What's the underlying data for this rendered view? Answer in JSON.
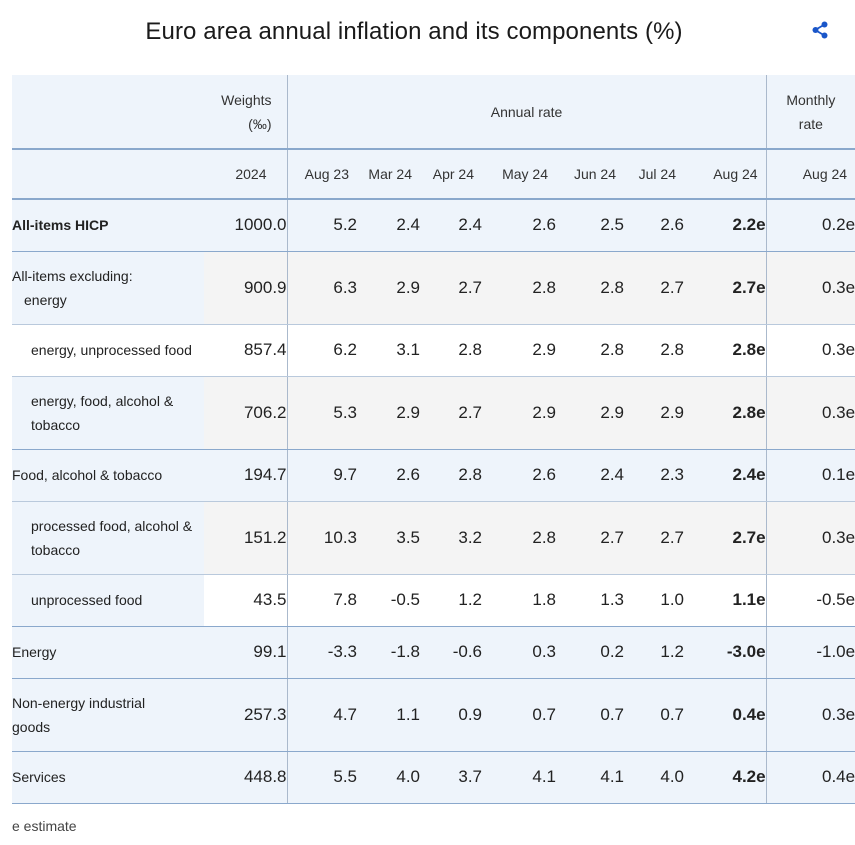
{
  "title": "Euro area annual inflation and its components (%)",
  "share_icon": "share-icon",
  "colors": {
    "header_bg": "#eef4fb",
    "row_alt_bg": "#f4f4f4",
    "border": "#8aa8cc",
    "share_icon": "#1a56c9"
  },
  "header": {
    "weights_line1": "Weights",
    "weights_line2": "(‰)",
    "annual_rate": "Annual rate",
    "monthly_line1": "Monthly",
    "monthly_line2": "rate",
    "weights_year": "2024",
    "periods": [
      "Aug 23",
      "Mar 24",
      "Apr 24",
      "May 24",
      "Jun 24",
      "Jul 24",
      "Aug 24"
    ],
    "monthly_period": "Aug 24"
  },
  "rows": [
    {
      "label": "All-items HICP",
      "weight": "1000.0",
      "values": [
        "5.2",
        "2.4",
        "2.4",
        "2.6",
        "2.5",
        "2.6",
        "2.2e"
      ],
      "monthly": "0.2e"
    },
    {
      "label_line1": "All-items excluding:",
      "label_line2": "energy",
      "weight": "900.9",
      "values": [
        "6.3",
        "2.9",
        "2.7",
        "2.8",
        "2.8",
        "2.7",
        "2.7e"
      ],
      "monthly": "0.3e"
    },
    {
      "label": "energy, unprocessed food",
      "weight": "857.4",
      "values": [
        "6.2",
        "3.1",
        "2.8",
        "2.9",
        "2.8",
        "2.8",
        "2.8e"
      ],
      "monthly": "0.3e"
    },
    {
      "label_line1": "energy, food, alcohol &",
      "label_line2": "tobacco",
      "weight": "706.2",
      "values": [
        "5.3",
        "2.9",
        "2.7",
        "2.9",
        "2.9",
        "2.9",
        "2.8e"
      ],
      "monthly": "0.3e"
    },
    {
      "label": "Food, alcohol & tobacco",
      "weight": "194.7",
      "values": [
        "9.7",
        "2.6",
        "2.8",
        "2.6",
        "2.4",
        "2.3",
        "2.4e"
      ],
      "monthly": "0.1e"
    },
    {
      "label_line1": "processed food, alcohol &",
      "label_line2": "tobacco",
      "weight": "151.2",
      "values": [
        "10.3",
        "3.5",
        "3.2",
        "2.8",
        "2.7",
        "2.7",
        "2.7e"
      ],
      "monthly": "0.3e"
    },
    {
      "label": "unprocessed food",
      "weight": "43.5",
      "values": [
        "7.8",
        "-0.5",
        "1.2",
        "1.8",
        "1.3",
        "1.0",
        "1.1e"
      ],
      "monthly": "-0.5e"
    },
    {
      "label": "Energy",
      "weight": "99.1",
      "values": [
        "-3.3",
        "-1.8",
        "-0.6",
        "0.3",
        "0.2",
        "1.2",
        "-3.0e"
      ],
      "monthly": "-1.0e"
    },
    {
      "label_line1": "Non-energy industrial",
      "label_line2": "goods",
      "weight": "257.3",
      "values": [
        "4.7",
        "1.1",
        "0.9",
        "0.7",
        "0.7",
        "0.7",
        "0.4e"
      ],
      "monthly": "0.3e"
    },
    {
      "label": "Services",
      "weight": "448.8",
      "values": [
        "5.5",
        "4.0",
        "3.7",
        "4.1",
        "4.1",
        "4.0",
        "4.2e"
      ],
      "monthly": "0.4e"
    }
  ],
  "footnote": "e estimate"
}
